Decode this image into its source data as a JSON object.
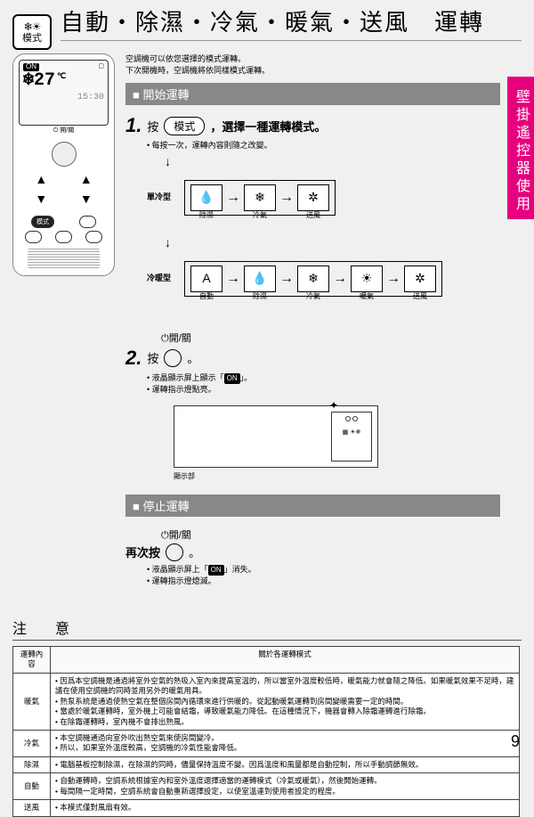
{
  "badge": {
    "icons": "❄☀",
    "text": "模式"
  },
  "title": "自動・除濕・冷氣・暖氣・送風　運轉",
  "side_tab": "壁掛遙控器使用",
  "intro": [
    "空調機可以依您選擇的模式運轉。",
    "下次開機時，空調機將依同樣模式運轉。"
  ],
  "remote": {
    "on_badge": "ON",
    "temp": "27",
    "deg": "℃",
    "clock": "15:30",
    "onoff_label": "開/關",
    "mode_btn": "模式"
  },
  "start_bar": "開始運轉",
  "step1": {
    "num": "1.",
    "verb": "按",
    "pill": "模式",
    "rest": "，選擇一種運轉模式。",
    "bullet": "每按一次，運轉內容則隨之改變。",
    "single_label": "單冷型",
    "heat_label": "冷暖型",
    "modes_single": [
      {
        "icon": "💧",
        "cap": "除濕"
      },
      {
        "icon": "❄",
        "cap": "冷氣"
      },
      {
        "icon": "✲",
        "cap": "送風"
      }
    ],
    "modes_heat": [
      {
        "icon": "A",
        "cap": "自動"
      },
      {
        "icon": "💧",
        "cap": "除濕"
      },
      {
        "icon": "❄",
        "cap": "冷氣"
      },
      {
        "icon": "☀",
        "cap": "暖氣"
      },
      {
        "icon": "✲",
        "cap": "送風"
      }
    ]
  },
  "step2": {
    "onoff": "開/關",
    "num": "2.",
    "verb": "按",
    "end": "。",
    "b1a": "液晶顯示屏上顯示「",
    "b1chip": "ON",
    "b1b": "」。",
    "b2": "運轉指示燈點亮。",
    "unit_panel": "■■■",
    "unit_cap": "顯示部"
  },
  "stop_bar": "停止運轉",
  "stop": {
    "onoff": "開/關",
    "again": "再次按",
    "end": "。",
    "b1a": "液晶顯示屏上「",
    "b1chip": "ON",
    "b1b": "」消失。",
    "b2": "運轉指示燈熄滅。"
  },
  "notes_title": "注　意",
  "notes_table": {
    "head": [
      "運轉內容",
      "關於各運轉模式"
    ],
    "rows": [
      {
        "mode": "暖氣",
        "items": [
          "因爲本空調機是通過將室外空氣的熱吸入室內來提高室溫的，所以當室外溫度較低時，暖氣能力就會隨之降低。如果暖氣效果不足時，建議在使用空調機的同時並用另外的暖氣用具。",
          "熱泵系統是通過使熱空氣在整個房間內循環來進行供暖的。從起動暖氣運轉到房間變暖需要一定的時間。",
          "當處於暖氣運轉時，室外機上可能會結霜，導致暖氣能力降低。在這種情況下，機器會轉入除霜運轉進行除霜。",
          "在除霜運轉時，室內機不會排出熱風。"
        ]
      },
      {
        "mode": "冷氣",
        "items": [
          "本空調機通過向室外吹出熱空氣來使房間變冷。",
          "所以，如果室外溫度較高，空調機的冷氣性能會降低。"
        ]
      },
      {
        "mode": "除濕",
        "items": [
          "電腦基板控制除濕，在除濕的同時，儘量保持溫度不變。因爲溫度和風量都是自動控制，所以手動調節無效。"
        ]
      },
      {
        "mode": "自動",
        "items": [
          "自動運轉時，空調系統根據室內和室外溫度選擇適當的運轉模式（冷氣或暖氣），然後開始運轉。",
          "每間隔一定時間，空調系統會自動重新選擇設定，以使室溫達到使用者設定的程度。"
        ]
      },
      {
        "mode": "送風",
        "items": [
          "本模式僅對風扇有效。"
        ]
      }
    ]
  },
  "page_num": "9",
  "colors": {
    "bg": "#f0f0f0",
    "pink": "#e6007e",
    "bar": "#888888",
    "rule": "#555555"
  }
}
